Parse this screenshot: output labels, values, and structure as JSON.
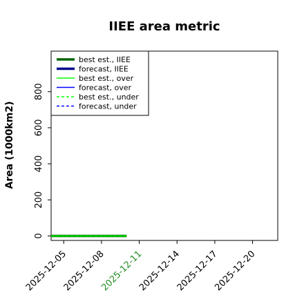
{
  "chart_data": {
    "type": "line",
    "title": "IIEE area metric",
    "xlabel": "",
    "ylabel": "Area (1000km2)",
    "x_tick_labels": [
      "2025-12-05",
      "2025-12-08",
      "2025-12-11",
      "2025-12-14",
      "2025-12-17",
      "2025-12-20"
    ],
    "x_tick_dates": [
      "2025-12-05",
      "2025-12-08",
      "2025-12-11",
      "2025-12-14",
      "2025-12-17",
      "2025-12-20"
    ],
    "highlighted_tick": "2025-12-11",
    "xlim": [
      "2025-12-04",
      "2025-12-22"
    ],
    "y_ticks": [
      0,
      200,
      400,
      600,
      800
    ],
    "y_tick_labels": [
      "0",
      "200",
      "400",
      "600",
      "800"
    ],
    "ylim": [
      -25,
      1025
    ],
    "grid": false,
    "legend_position": "top-left",
    "series": [
      {
        "name": "best est., IIEE",
        "style": "solid-thick",
        "color": "#006400",
        "x": [
          "2025-12-04",
          "2025-12-05",
          "2025-12-06",
          "2025-12-07",
          "2025-12-08",
          "2025-12-09",
          "2025-12-10"
        ],
        "y": [
          0,
          0,
          0,
          0,
          0,
          0,
          0
        ]
      },
      {
        "name": "forecast, IIEE",
        "style": "solid-thick",
        "color": "#00008b",
        "x": [],
        "y": []
      },
      {
        "name": "best est., over",
        "style": "solid",
        "color": "#00ff00",
        "x": [
          "2025-12-04",
          "2025-12-05",
          "2025-12-06",
          "2025-12-07",
          "2025-12-08",
          "2025-12-09",
          "2025-12-10"
        ],
        "y": [
          0,
          0,
          0,
          0,
          0,
          0,
          0
        ]
      },
      {
        "name": "forecast, over",
        "style": "solid",
        "color": "#0000ff",
        "x": [],
        "y": []
      },
      {
        "name": "best est., under",
        "style": "dashed",
        "color": "#00ff00",
        "x": [
          "2025-12-04",
          "2025-12-05",
          "2025-12-06",
          "2025-12-07",
          "2025-12-08",
          "2025-12-09",
          "2025-12-10"
        ],
        "y": [
          0,
          0,
          0,
          0,
          0,
          0,
          0
        ]
      },
      {
        "name": "forecast, under",
        "style": "dashed",
        "color": "#0000ff",
        "x": [],
        "y": []
      }
    ]
  },
  "colors": {
    "axis": "#000000",
    "highlight_tick": "#228b22"
  }
}
